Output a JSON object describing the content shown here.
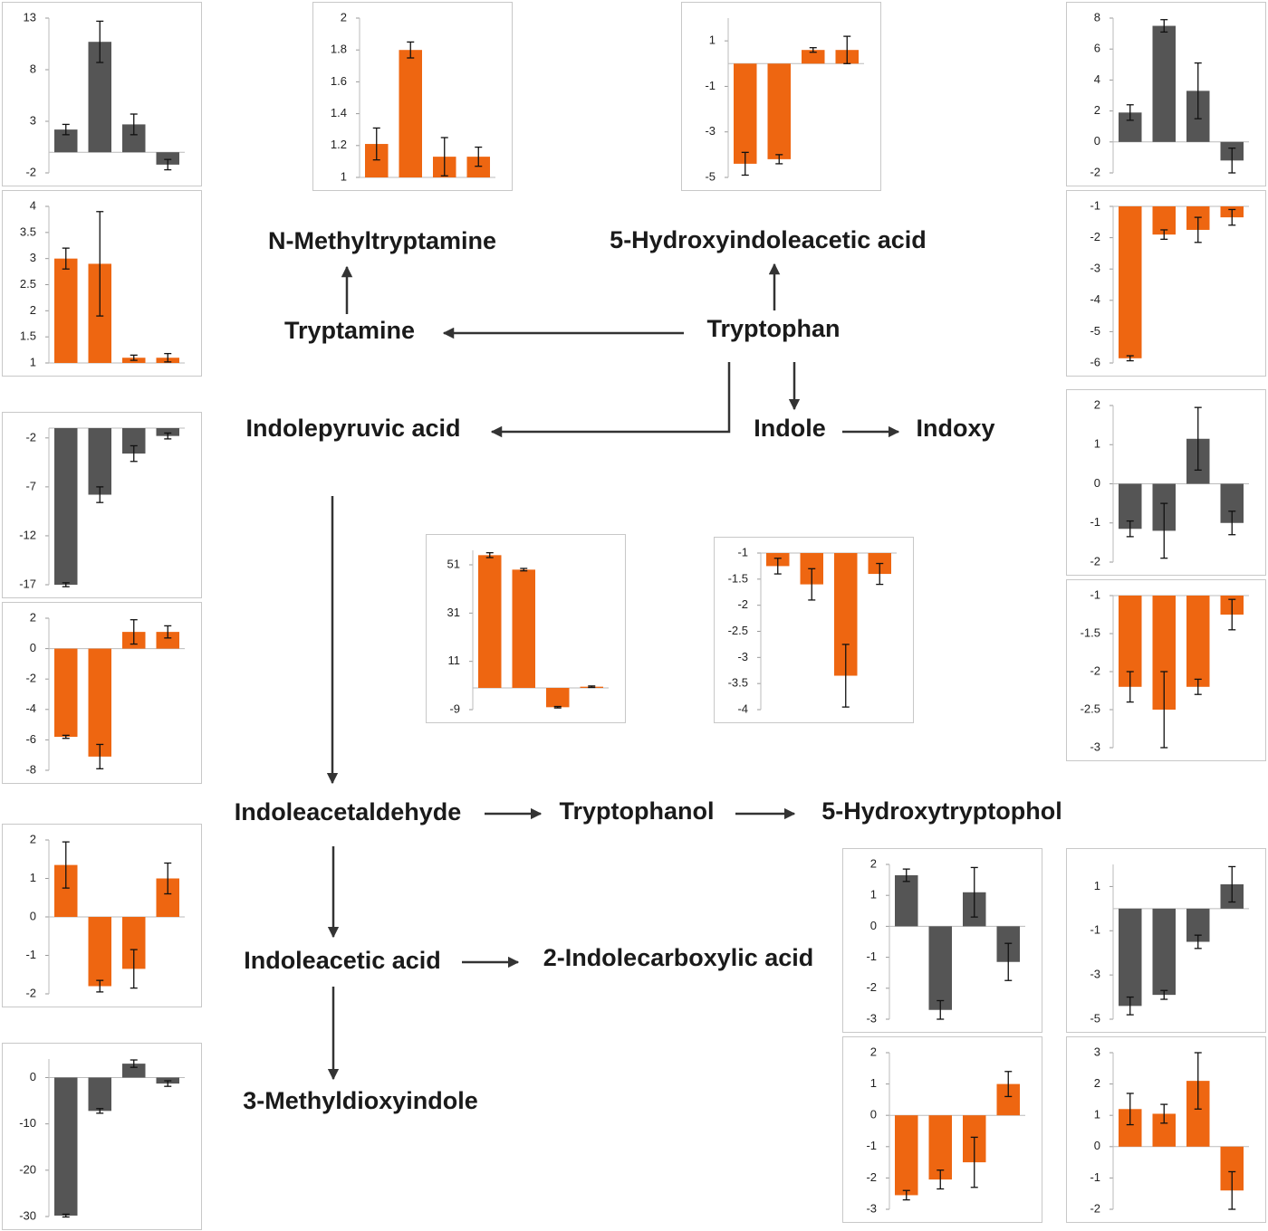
{
  "nodes": [
    {
      "label": "N-Methyltryptamine"
    },
    {
      "label": "5-Hydroxyindoleacetic acid"
    },
    {
      "label": "Tryptamine"
    },
    {
      "label": "Tryptophan"
    },
    {
      "label": "Indolepyruvic acid"
    },
    {
      "label": "Indole"
    },
    {
      "label": "Indoxy"
    },
    {
      "label": "Indoleacetaldehyde"
    },
    {
      "label": "Tryptophanol"
    },
    {
      "label": "5-Hydroxytryptophol"
    },
    {
      "label": "Indoleacetic acid"
    },
    {
      "label": "2-Indolecarboxylic acid"
    },
    {
      "label": "3-Methyldioxyindole"
    }
  ],
  "chart_data": [
    {
      "type": "bar",
      "color": "#555555",
      "values": [
        2.2,
        10.7,
        2.7,
        -1.2
      ],
      "errors": [
        0.5,
        2,
        1,
        0.5
      ],
      "ylim": [
        -2,
        13
      ],
      "yticks": [
        13,
        8,
        3,
        -2
      ]
    },
    {
      "type": "bar",
      "color": "#ee6611",
      "values": [
        1.21,
        1.8,
        1.13,
        1.13
      ],
      "errors": [
        0.1,
        0.05,
        0.12,
        0.06
      ],
      "ylim": [
        1,
        2
      ],
      "yticks": [
        2,
        1.8,
        1.6,
        1.4,
        1.2,
        1
      ]
    },
    {
      "type": "bar",
      "color": "#ee6611",
      "values": [
        -4.4,
        -4.2,
        0.6,
        0.6
      ],
      "errors": [
        0.5,
        0.2,
        0.1,
        0.6
      ],
      "ylim": [
        -5,
        2
      ],
      "yticks": [
        1,
        -1,
        -3,
        -5
      ]
    },
    {
      "type": "bar",
      "color": "#555555",
      "values": [
        1.9,
        7.5,
        3.3,
        -1.2
      ],
      "errors": [
        0.5,
        0.4,
        1.8,
        0.8
      ],
      "ylim": [
        -2,
        8
      ],
      "yticks": [
        8,
        6,
        4,
        2,
        0,
        -2
      ]
    },
    {
      "type": "bar",
      "color": "#ee6611",
      "values": [
        -5.85,
        -1.9,
        -1.75,
        -1.35
      ],
      "errors": [
        0.08,
        0.15,
        0.4,
        0.25
      ],
      "ylim": [
        -6,
        -1
      ],
      "yticks": [
        -1,
        -2,
        -3,
        -4,
        -5,
        -6
      ]
    },
    {
      "type": "bar",
      "color": "#ee6611",
      "values": [
        3.0,
        2.9,
        1.1,
        1.1
      ],
      "errors": [
        0.2,
        1.0,
        0.05,
        0.08
      ],
      "ylim": [
        1,
        4
      ],
      "yticks": [
        4,
        3.5,
        3,
        2.5,
        2,
        1.5,
        1
      ]
    },
    {
      "type": "bar",
      "color": "#555555",
      "values": [
        -17,
        -7.8,
        -3.6,
        -1.8
      ],
      "errors": [
        0.2,
        0.8,
        0.8,
        0.3
      ],
      "ylim": [
        -17,
        -1
      ],
      "yticks": [
        -2,
        -7,
        -12,
        -17
      ]
    },
    {
      "type": "bar",
      "color": "#ee6611",
      "values": [
        -5.8,
        -7.1,
        1.1,
        1.1
      ],
      "errors": [
        0.1,
        0.8,
        0.8,
        0.4
      ],
      "ylim": [
        -8,
        2
      ],
      "yticks": [
        2,
        0,
        -2,
        -4,
        -6,
        -8
      ]
    },
    {
      "type": "bar",
      "color": "#ee6611",
      "values": [
        55,
        49,
        -8,
        0.5
      ],
      "errors": [
        1,
        0.5,
        0.3,
        0.3
      ],
      "ylim": [
        -9,
        57
      ],
      "yticks": [
        51,
        31,
        11,
        -9
      ]
    },
    {
      "type": "bar",
      "color": "#ee6611",
      "values": [
        -1.25,
        -1.6,
        -3.35,
        -1.4
      ],
      "errors": [
        0.15,
        0.3,
        0.6,
        0.2
      ],
      "ylim": [
        -4,
        -1
      ],
      "yticks": [
        -1,
        -1.5,
        -2,
        -2.5,
        -3,
        -3.5,
        -4
      ]
    },
    {
      "type": "bar",
      "color": "#555555",
      "values": [
        -1.15,
        -1.2,
        1.15,
        -1.0
      ],
      "errors": [
        0.2,
        0.7,
        0.8,
        0.3
      ],
      "ylim": [
        -2,
        2
      ],
      "yticks": [
        2,
        1,
        0,
        -1,
        -2
      ]
    },
    {
      "type": "bar",
      "color": "#ee6611",
      "values": [
        -2.2,
        -2.5,
        -2.2,
        -1.25
      ],
      "errors": [
        0.2,
        0.5,
        0.1,
        0.2
      ],
      "ylim": [
        -3,
        -1
      ],
      "yticks": [
        -1,
        -1.5,
        -2,
        -2.5,
        -3
      ]
    },
    {
      "type": "bar",
      "color": "#ee6611",
      "values": [
        1.35,
        -1.8,
        -1.35,
        1.0
      ],
      "errors": [
        0.6,
        0.15,
        0.5,
        0.4
      ],
      "ylim": [
        -2,
        2
      ],
      "yticks": [
        2,
        1,
        0,
        -1,
        -2
      ]
    },
    {
      "type": "bar",
      "color": "#555555",
      "values": [
        -29.8,
        -7.2,
        3.0,
        -1.3
      ],
      "errors": [
        0.3,
        0.5,
        0.8,
        0.6
      ],
      "ylim": [
        -30,
        4
      ],
      "yticks": [
        0,
        -10,
        -20,
        -30
      ]
    },
    {
      "type": "bar",
      "color": "#555555",
      "values": [
        1.65,
        -2.7,
        1.1,
        -1.15
      ],
      "errors": [
        0.2,
        0.3,
        0.8,
        0.6
      ],
      "ylim": [
        -3,
        2
      ],
      "yticks": [
        2,
        1,
        0,
        -1,
        -2,
        -3
      ]
    },
    {
      "type": "bar",
      "color": "#555555",
      "values": [
        -4.4,
        -3.9,
        -1.5,
        1.1
      ],
      "errors": [
        0.4,
        0.2,
        0.3,
        0.8
      ],
      "ylim": [
        -5,
        2
      ],
      "yticks": [
        1,
        -1,
        -3,
        -5
      ]
    },
    {
      "type": "bar",
      "color": "#ee6611",
      "values": [
        -2.55,
        -2.05,
        -1.5,
        1.0
      ],
      "errors": [
        0.15,
        0.3,
        0.8,
        0.4
      ],
      "ylim": [
        -3,
        2
      ],
      "yticks": [
        2,
        1,
        0,
        -1,
        -2,
        -3
      ]
    },
    {
      "type": "bar",
      "color": "#ee6611",
      "values": [
        1.2,
        1.05,
        2.1,
        -1.4
      ],
      "errors": [
        0.5,
        0.3,
        0.9,
        0.6
      ],
      "ylim": [
        -2,
        3
      ],
      "yticks": [
        3,
        2,
        1,
        0,
        -1,
        -2
      ]
    }
  ]
}
